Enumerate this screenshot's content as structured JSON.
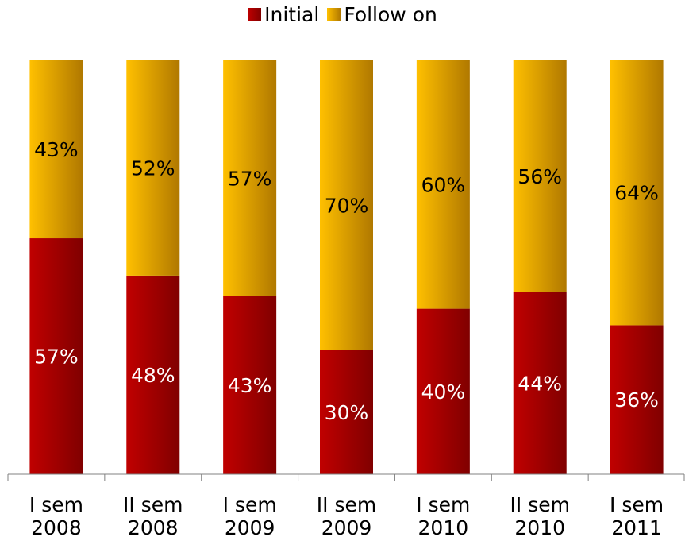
{
  "chart_data": {
    "type": "bar",
    "stacked": true,
    "percent_stacked": true,
    "categories": [
      [
        "I sem",
        "2008"
      ],
      [
        "II sem",
        "2008"
      ],
      [
        "I sem",
        "2009"
      ],
      [
        "II sem",
        "2009"
      ],
      [
        "I sem",
        "2010"
      ],
      [
        "II sem",
        "2010"
      ],
      [
        "I sem",
        "2011"
      ]
    ],
    "series": [
      {
        "name": "Initial",
        "values": [
          57,
          48,
          43,
          30,
          40,
          44,
          36
        ],
        "labels": [
          "57%",
          "48%",
          "43%",
          "30%",
          "40%",
          "44%",
          "36%"
        ],
        "color": "#c00000",
        "color_dark": "#800000",
        "label_color": "#ffffff"
      },
      {
        "name": "Follow on",
        "values": [
          43,
          52,
          57,
          70,
          60,
          56,
          64
        ],
        "labels": [
          "43%",
          "52%",
          "57%",
          "70%",
          "60%",
          "56%",
          "64%"
        ],
        "color": "#ffc000",
        "color_dark": "#b07800",
        "label_color": "#000000"
      }
    ],
    "ylim": [
      0,
      100
    ],
    "legend_position": "top",
    "grid": false
  }
}
